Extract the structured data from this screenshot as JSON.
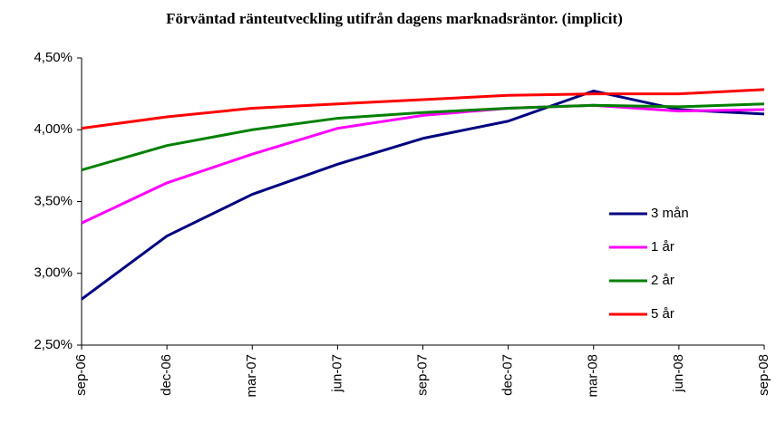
{
  "chart_data": {
    "type": "line",
    "title": "Förväntad ränteutveckling utifrån dagens marknadsräntor. (implicit)",
    "categories": [
      "sep-06",
      "dec-06",
      "mar-07",
      "jun-07",
      "sep-07",
      "dec-07",
      "mar-08",
      "jun-08",
      "sep-08"
    ],
    "series": [
      {
        "name": "3 mån",
        "color": "#000080",
        "values": [
          2.82,
          3.26,
          3.55,
          3.76,
          3.94,
          4.06,
          4.27,
          4.14,
          4.11
        ]
      },
      {
        "name": "1 år",
        "color": "#ff00ff",
        "values": [
          3.35,
          3.63,
          3.83,
          4.01,
          4.1,
          4.15,
          4.17,
          4.13,
          4.14
        ]
      },
      {
        "name": "2 år",
        "color": "#008000",
        "values": [
          3.72,
          3.89,
          4.0,
          4.08,
          4.12,
          4.15,
          4.17,
          4.16,
          4.18
        ]
      },
      {
        "name": "5 år",
        "color": "#ff0000",
        "values": [
          4.01,
          4.09,
          4.15,
          4.18,
          4.21,
          4.24,
          4.25,
          4.25,
          4.28
        ]
      }
    ],
    "ylim": [
      2.5,
      4.5
    ],
    "yticks": [
      {
        "value": 2.5,
        "label": "2,50%"
      },
      {
        "value": 3.0,
        "label": "3,00%"
      },
      {
        "value": 3.5,
        "label": "3,50%"
      },
      {
        "value": 4.0,
        "label": "4,00%"
      },
      {
        "value": 4.5,
        "label": "4,50%"
      }
    ],
    "grid": false,
    "legend": "right"
  }
}
